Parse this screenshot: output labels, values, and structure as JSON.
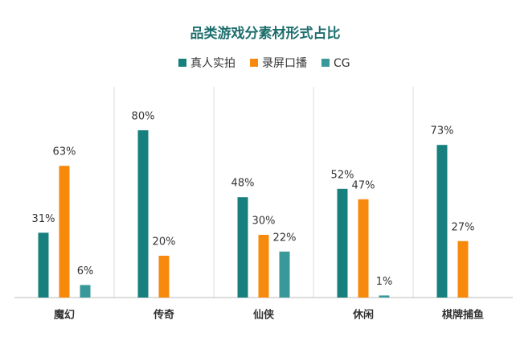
{
  "chart_data": {
    "type": "bar",
    "title": "品类游戏分素材形式占比",
    "categories": [
      "魔幻",
      "传奇",
      "仙侠",
      "休闲",
      "棋牌捕鱼"
    ],
    "series": [
      {
        "name": "真人实拍",
        "color": "#17807e",
        "values": [
          31,
          80,
          48,
          52,
          73
        ],
        "value_labels": [
          "31%",
          "80%",
          "48%",
          "52%",
          "73%"
        ]
      },
      {
        "name": "录屏口播",
        "color": "#f7890c",
        "values": [
          63,
          20,
          30,
          47,
          27
        ],
        "value_labels": [
          "63%",
          "20%",
          "30%",
          "47%",
          "27%"
        ]
      },
      {
        "name": "CG",
        "color": "#39999a",
        "values": [
          6,
          null,
          22,
          1,
          null
        ],
        "value_labels": [
          "6%",
          null,
          "22%",
          "1%",
          null
        ]
      }
    ],
    "ylim": [
      0,
      100
    ],
    "legend": "top"
  }
}
